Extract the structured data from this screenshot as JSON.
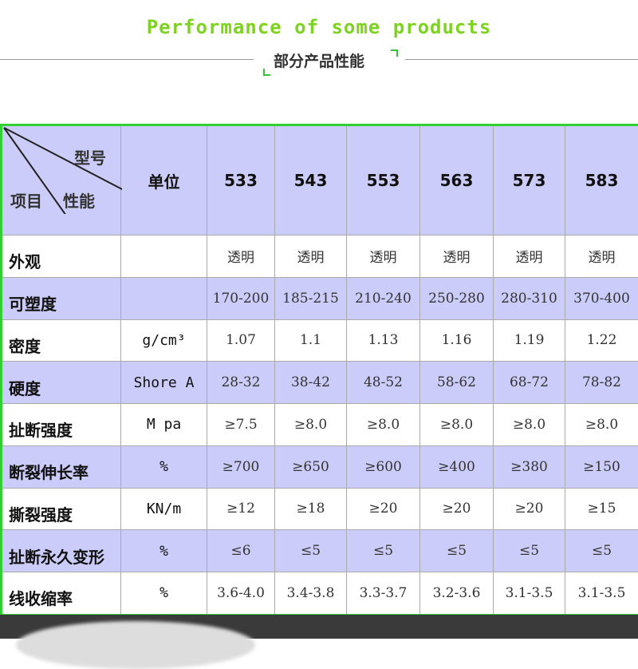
{
  "header": {
    "title": "Performance of some products",
    "subtitle": "部分产品性能"
  },
  "table": {
    "corner": {
      "model": "型号",
      "item": "项目",
      "property": "性能"
    },
    "unit_header": "单位",
    "models": [
      "533",
      "543",
      "553",
      "563",
      "573",
      "583"
    ],
    "rows": [
      {
        "name": "外观",
        "unit": "",
        "values": [
          "透明",
          "透明",
          "透明",
          "透明",
          "透明",
          "透明"
        ]
      },
      {
        "name": "可塑度",
        "unit": "",
        "values": [
          "170-200",
          "185-215",
          "210-240",
          "250-280",
          "280-310",
          "370-400"
        ]
      },
      {
        "name": "密度",
        "unit": "g/cm³",
        "values": [
          "1.07",
          "1.1",
          "1.13",
          "1.16",
          "1.19",
          "1.22"
        ]
      },
      {
        "name": "硬度",
        "unit": "Shore A",
        "values": [
          "28-32",
          "38-42",
          "48-52",
          "58-62",
          "68-72",
          "78-82"
        ]
      },
      {
        "name": "扯断强度",
        "unit": "M pa",
        "values": [
          "≥7.5",
          "≥8.0",
          "≥8.0",
          "≥8.0",
          "≥8.0",
          "≥8.0"
        ]
      },
      {
        "name": "断裂伸长率",
        "unit": "%",
        "values": [
          "≥700",
          "≥650",
          "≥600",
          "≥400",
          "≥380",
          "≥150"
        ]
      },
      {
        "name": "撕裂强度",
        "unit": "KN/m",
        "values": [
          "≥12",
          "≥18",
          "≥20",
          "≥20",
          "≥20",
          "≥15"
        ]
      },
      {
        "name": "扯断永久变形",
        "unit": "%",
        "values": [
          "≤6",
          "≤5",
          "≤5",
          "≤5",
          "≤5",
          "≤5"
        ]
      },
      {
        "name": "线收缩率",
        "unit": "%",
        "values": [
          "3.6-4.0",
          "3.4-3.8",
          "3.3-3.7",
          "3.2-3.6",
          "3.1-3.5",
          "3.1-3.5"
        ]
      }
    ]
  },
  "colors": {
    "accent": "#7ed321",
    "border": "#2fd02f",
    "row_highlight": "#ccccfa"
  }
}
